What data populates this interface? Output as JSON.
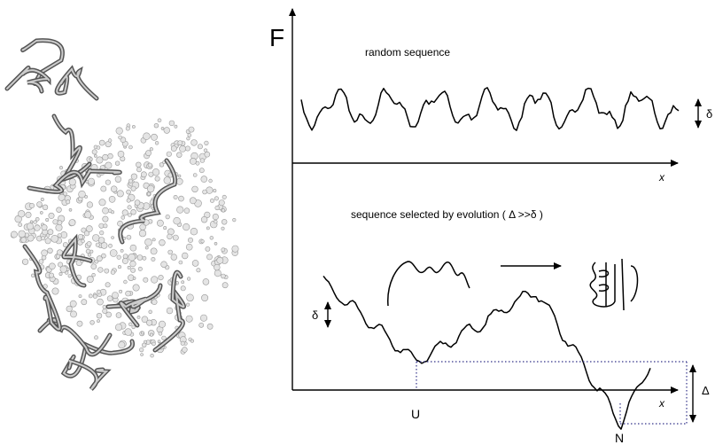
{
  "axis_label_y": "F",
  "top_panel": {
    "label": "random sequence",
    "x_label": "x",
    "delta_label": "δ"
  },
  "bottom_panel": {
    "label": "sequence selected by evolution ( Δ >>δ )",
    "delta_label": "δ",
    "x_label": "x",
    "big_delta_label": "Δ",
    "unfolded_label": "U",
    "native_label": "N"
  }
}
